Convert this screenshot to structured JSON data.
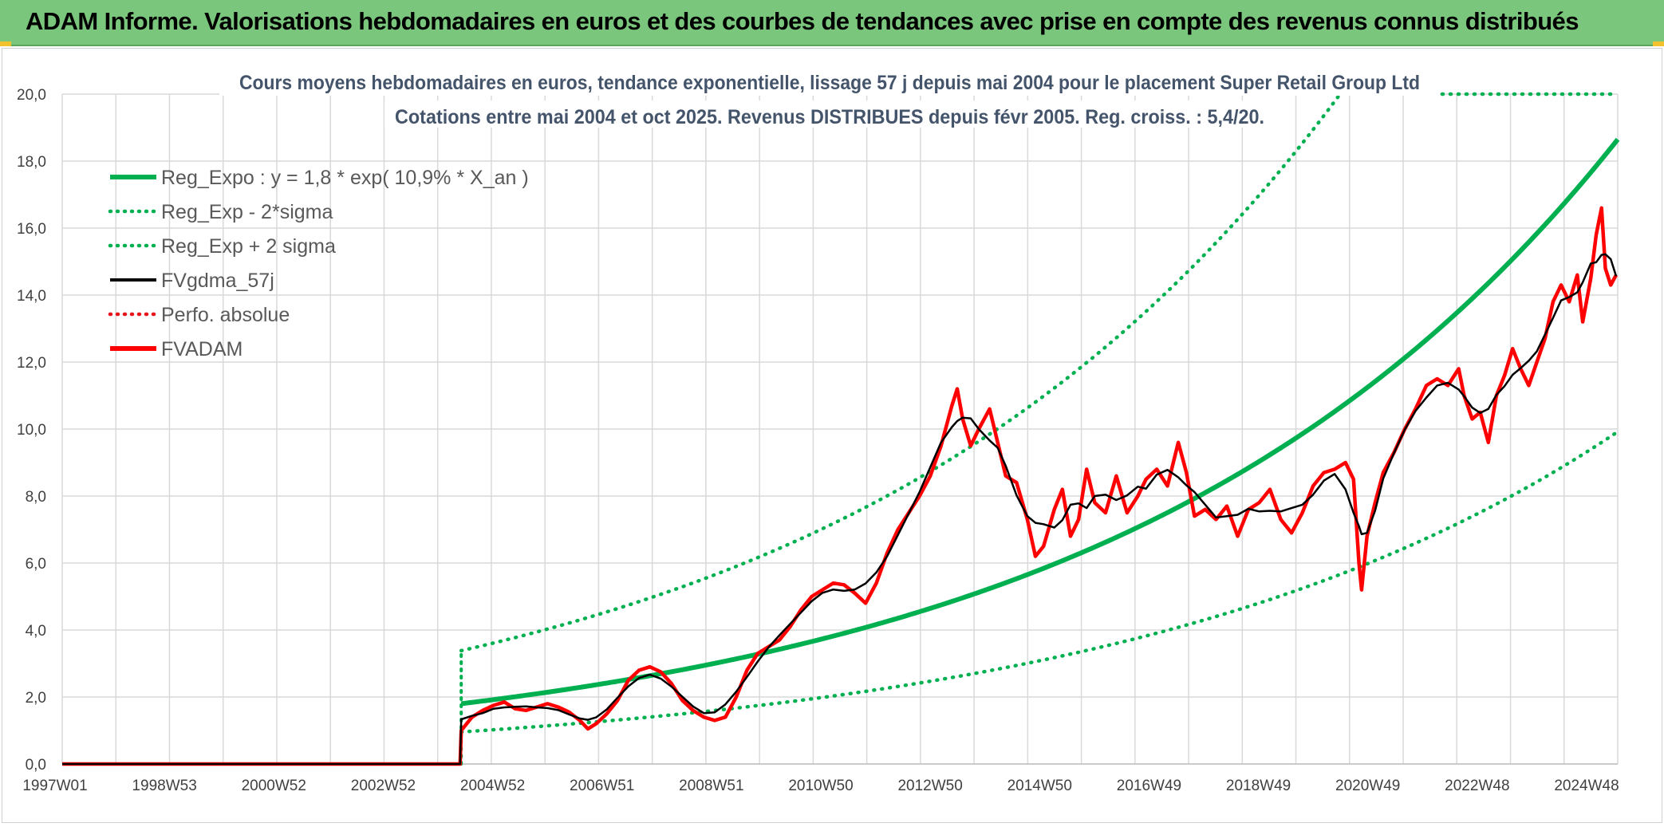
{
  "header": {
    "title": "ADAM Informe. Valorisations hebdomadaires en euros et des courbes de tendances avec prise en compte des revenus connus distribués"
  },
  "colors": {
    "header_bg": "#7ac67c",
    "reg_expo": "#00b050",
    "sigma": "#00b050",
    "fvgdma": "#000000",
    "perfo": "#e8141b",
    "fvadam": "#ff0000",
    "grid": "#d9d9d9"
  },
  "chart_data": {
    "type": "line",
    "title": "Cours moyens hebdomadaires en euros, tendance exponentielle, lissage 57 j depuis mai 2004 pour le placement Super Retail Group Ltd",
    "subtitle": "Cotations entre mai 2004 et oct 2025. Revenus DISTRIBUES depuis févr 2005. Reg. croiss. : 5,4/20.",
    "xlabel": "",
    "ylabel": "",
    "xlim": [
      1997.0,
      2025.85
    ],
    "ylim": [
      0,
      20
    ],
    "grid": true,
    "legend_position": "top-left",
    "x_tick_labels": [
      "1997W01",
      "1998W53",
      "2000W52",
      "2002W52",
      "2004W52",
      "2006W51",
      "2008W51",
      "2010W50",
      "2012W50",
      "2014W50",
      "2016W49",
      "2018W49",
      "2020W49",
      "2022W48",
      "2024W48"
    ],
    "y_tick_labels": [
      "0,0",
      "2,0",
      "4,0",
      "6,0",
      "8,0",
      "10,0",
      "12,0",
      "14,0",
      "16,0",
      "18,0",
      "20,0"
    ],
    "regression": {
      "start_year": 2004.4,
      "a": 1.8,
      "growth": 0.109,
      "sigma_factor": 1.88
    },
    "series": [
      {
        "name": "Reg_Expo : y = 1,8 * exp( 10,9% *  X_an )",
        "style": "solid-thick",
        "color": "#00b050"
      },
      {
        "name": "Reg_Exp - 2*sigma",
        "style": "dotted",
        "color": "#00b050"
      },
      {
        "name": "Reg_Exp + 2 sigma",
        "style": "dotted",
        "color": "#00b050"
      },
      {
        "name": "FVgdma_57j",
        "style": "solid",
        "color": "#000000"
      },
      {
        "name": "Perfo. absolue",
        "style": "dotted",
        "color": "#e8141b"
      },
      {
        "name": "FVADAM",
        "style": "solid-thick",
        "color": "#ff0000"
      }
    ],
    "fvadam_points": [
      [
        1997.0,
        0
      ],
      [
        2004.38,
        0
      ],
      [
        2004.4,
        1.0
      ],
      [
        2004.6,
        1.4
      ],
      [
        2004.8,
        1.6
      ],
      [
        2005.0,
        1.75
      ],
      [
        2005.2,
        1.85
      ],
      [
        2005.4,
        1.65
      ],
      [
        2005.6,
        1.6
      ],
      [
        2005.8,
        1.7
      ],
      [
        2006.0,
        1.8
      ],
      [
        2006.2,
        1.7
      ],
      [
        2006.4,
        1.55
      ],
      [
        2006.6,
        1.3
      ],
      [
        2006.75,
        1.05
      ],
      [
        2006.9,
        1.2
      ],
      [
        2007.1,
        1.5
      ],
      [
        2007.3,
        1.9
      ],
      [
        2007.5,
        2.5
      ],
      [
        2007.7,
        2.8
      ],
      [
        2007.9,
        2.9
      ],
      [
        2008.1,
        2.75
      ],
      [
        2008.3,
        2.4
      ],
      [
        2008.5,
        1.9
      ],
      [
        2008.7,
        1.6
      ],
      [
        2008.9,
        1.4
      ],
      [
        2009.1,
        1.3
      ],
      [
        2009.3,
        1.4
      ],
      [
        2009.5,
        2.0
      ],
      [
        2009.7,
        2.8
      ],
      [
        2009.9,
        3.3
      ],
      [
        2010.1,
        3.5
      ],
      [
        2010.3,
        3.7
      ],
      [
        2010.5,
        4.1
      ],
      [
        2010.7,
        4.6
      ],
      [
        2010.9,
        5.0
      ],
      [
        2011.1,
        5.2
      ],
      [
        2011.3,
        5.4
      ],
      [
        2011.5,
        5.35
      ],
      [
        2011.7,
        5.1
      ],
      [
        2011.9,
        4.8
      ],
      [
        2012.1,
        5.4
      ],
      [
        2012.3,
        6.3
      ],
      [
        2012.5,
        7.0
      ],
      [
        2012.7,
        7.5
      ],
      [
        2012.9,
        8.0
      ],
      [
        2013.1,
        8.6
      ],
      [
        2013.3,
        9.5
      ],
      [
        2013.5,
        10.7
      ],
      [
        2013.6,
        11.2
      ],
      [
        2013.7,
        10.3
      ],
      [
        2013.85,
        9.5
      ],
      [
        2014.0,
        10.0
      ],
      [
        2014.2,
        10.6
      ],
      [
        2014.35,
        9.6
      ],
      [
        2014.5,
        8.6
      ],
      [
        2014.7,
        8.4
      ],
      [
        2014.9,
        7.3
      ],
      [
        2015.05,
        6.2
      ],
      [
        2015.2,
        6.5
      ],
      [
        2015.4,
        7.6
      ],
      [
        2015.55,
        8.2
      ],
      [
        2015.7,
        6.8
      ],
      [
        2015.85,
        7.3
      ],
      [
        2016.0,
        8.8
      ],
      [
        2016.15,
        7.8
      ],
      [
        2016.35,
        7.5
      ],
      [
        2016.55,
        8.6
      ],
      [
        2016.75,
        7.5
      ],
      [
        2016.95,
        8.0
      ],
      [
        2017.1,
        8.5
      ],
      [
        2017.3,
        8.8
      ],
      [
        2017.5,
        8.3
      ],
      [
        2017.7,
        9.6
      ],
      [
        2017.85,
        8.7
      ],
      [
        2018.0,
        7.4
      ],
      [
        2018.2,
        7.6
      ],
      [
        2018.4,
        7.3
      ],
      [
        2018.6,
        7.7
      ],
      [
        2018.8,
        6.8
      ],
      [
        2019.0,
        7.6
      ],
      [
        2019.2,
        7.8
      ],
      [
        2019.4,
        8.2
      ],
      [
        2019.6,
        7.3
      ],
      [
        2019.8,
        6.9
      ],
      [
        2020.0,
        7.5
      ],
      [
        2020.2,
        8.3
      ],
      [
        2020.4,
        8.7
      ],
      [
        2020.6,
        8.8
      ],
      [
        2020.8,
        9.0
      ],
      [
        2020.95,
        8.5
      ],
      [
        2021.05,
        6.0
      ],
      [
        2021.1,
        5.2
      ],
      [
        2021.2,
        6.8
      ],
      [
        2021.35,
        7.8
      ],
      [
        2021.5,
        8.7
      ],
      [
        2021.7,
        9.3
      ],
      [
        2021.9,
        10.0
      ],
      [
        2022.1,
        10.6
      ],
      [
        2022.3,
        11.3
      ],
      [
        2022.5,
        11.5
      ],
      [
        2022.7,
        11.3
      ],
      [
        2022.9,
        11.8
      ],
      [
        2023.0,
        11.0
      ],
      [
        2023.15,
        10.3
      ],
      [
        2023.3,
        10.5
      ],
      [
        2023.45,
        9.6
      ],
      [
        2023.6,
        11.0
      ],
      [
        2023.75,
        11.6
      ],
      [
        2023.9,
        12.4
      ],
      [
        2024.05,
        11.8
      ],
      [
        2024.2,
        11.3
      ],
      [
        2024.35,
        12.0
      ],
      [
        2024.5,
        12.7
      ],
      [
        2024.65,
        13.8
      ],
      [
        2024.8,
        14.3
      ],
      [
        2024.95,
        13.8
      ],
      [
        2025.1,
        14.6
      ],
      [
        2025.2,
        13.2
      ],
      [
        2025.35,
        14.5
      ],
      [
        2025.45,
        15.8
      ],
      [
        2025.55,
        16.6
      ],
      [
        2025.62,
        14.8
      ],
      [
        2025.72,
        14.3
      ],
      [
        2025.82,
        14.6
      ]
    ]
  }
}
